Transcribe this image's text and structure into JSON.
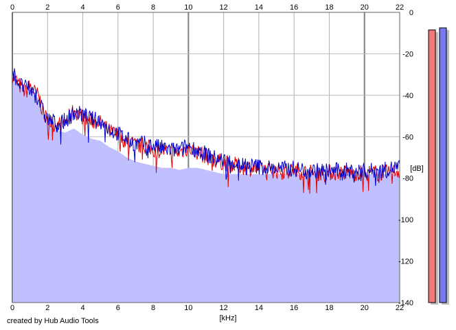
{
  "footer": {
    "credit": "created by Hub Audio Tools"
  },
  "chart_data": {
    "type": "area",
    "xlabel": "[kHz]",
    "ylabel": "[dB]",
    "xlim": [
      0,
      22
    ],
    "ylim": [
      -140,
      0
    ],
    "x_ticks": [
      0,
      2,
      4,
      6,
      8,
      10,
      12,
      14,
      16,
      18,
      20,
      22
    ],
    "y_ticks": [
      0,
      -20,
      -40,
      -60,
      -80,
      -100,
      -120,
      -140
    ],
    "grid": true,
    "x": [
      0,
      0.25,
      0.5,
      0.75,
      1,
      1.25,
      1.5,
      1.75,
      2,
      2.5,
      3,
      3.5,
      4,
      4.5,
      5,
      5.5,
      6,
      6.5,
      7,
      7.5,
      8,
      8.5,
      9,
      9.5,
      10,
      10.5,
      11,
      11.5,
      12,
      13,
      14,
      15,
      16,
      17,
      18,
      19,
      20,
      21,
      22
    ],
    "series": [
      {
        "color": "#e00000",
        "values": [
          -30,
          -33,
          -36,
          -38,
          -35,
          -38,
          -40,
          -48,
          -52,
          -54,
          -53,
          -47,
          -50,
          -52,
          -53,
          -57,
          -59,
          -62,
          -64,
          -64,
          -66,
          -66,
          -67,
          -67,
          -65,
          -67,
          -69,
          -71,
          -72,
          -74,
          -75,
          -76,
          -76,
          -77,
          -77,
          -77,
          -77,
          -77,
          -76
        ]
      },
      {
        "color": "#0000c8",
        "values": [
          -28,
          -32,
          -35,
          -36,
          -37,
          -39,
          -41,
          -48,
          -51,
          -53,
          -52,
          -48,
          -49,
          -51,
          -52,
          -56,
          -58,
          -61,
          -63,
          -63,
          -64,
          -65,
          -66,
          -66,
          -64,
          -66,
          -68,
          -70,
          -71,
          -73,
          -74,
          -75,
          -75,
          -76,
          -76,
          -76,
          -76,
          -76,
          -74
        ]
      }
    ],
    "fill": {
      "color": "#c0c0ff",
      "values": [
        -30,
        -33,
        -36,
        -38,
        -37,
        -39,
        -42,
        -50,
        -54,
        -57,
        -58,
        -56,
        -59,
        -61,
        -62,
        -65,
        -67,
        -70,
        -72,
        -73,
        -74,
        -75,
        -75,
        -76,
        -75,
        -75,
        -76,
        -77,
        -78,
        -78,
        -78,
        -78,
        -78,
        -78,
        -78,
        -78,
        -78,
        -78,
        -78
      ]
    },
    "meters": [
      {
        "color": "#f07878",
        "value": -8.5
      },
      {
        "color": "#7878f0",
        "value": -7.5
      }
    ]
  }
}
